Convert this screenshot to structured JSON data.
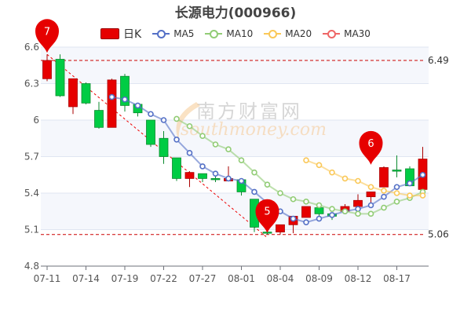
{
  "chart_data": {
    "type": "candlestick",
    "title": "长源电力(000966)",
    "legend": [
      "日K",
      "MA5",
      "MA10",
      "MA20",
      "MA30"
    ],
    "legend_placement": "top",
    "colors": {
      "up": "#e60000",
      "down": "#00cc44",
      "MA5": "#5470c6",
      "MA10": "#91cc75",
      "MA20": "#fac858",
      "MA30": "#ee6666"
    },
    "ylim": [
      4.8,
      6.6
    ],
    "yticks": [
      "4.8",
      "5.1",
      "5.4",
      "5.7",
      "6",
      "6.3",
      "6.6"
    ],
    "grid": true,
    "dates": [
      "07-11",
      "07-12",
      "07-13",
      "07-14",
      "07-15",
      "07-18",
      "07-19",
      "07-20",
      "07-21",
      "07-22",
      "07-25",
      "07-26",
      "07-27",
      "07-28",
      "07-29",
      "08-01",
      "08-02",
      "08-03",
      "08-04",
      "08-05",
      "08-08",
      "08-09",
      "08-10",
      "08-11",
      "08-12",
      "08-15",
      "08-16",
      "08-17",
      "08-18",
      "08-19"
    ],
    "xtick_labels": [
      "07-11",
      "07-14",
      "07-19",
      "07-22",
      "07-27",
      "08-01",
      "08-04",
      "08-09",
      "08-12",
      "08-17"
    ],
    "ohlc": [
      [
        6.34,
        6.49,
        6.54,
        6.32
      ],
      [
        6.5,
        6.2,
        6.54,
        6.19
      ],
      [
        6.11,
        6.34,
        6.34,
        6.05
      ],
      [
        6.3,
        6.14,
        6.31,
        6.13
      ],
      [
        6.08,
        5.94,
        6.15,
        5.93
      ],
      [
        5.94,
        6.33,
        6.34,
        5.94
      ],
      [
        6.36,
        6.12,
        6.38,
        6.07
      ],
      [
        6.13,
        6.06,
        6.13,
        6.03
      ],
      [
        6.0,
        5.8,
        6.0,
        5.78
      ],
      [
        5.85,
        5.7,
        5.91,
        5.64
      ],
      [
        5.69,
        5.52,
        5.69,
        5.5
      ],
      [
        5.52,
        5.57,
        5.58,
        5.45
      ],
      [
        5.56,
        5.52,
        5.56,
        5.49
      ],
      [
        5.52,
        5.51,
        5.54,
        5.49
      ],
      [
        5.5,
        5.52,
        5.62,
        5.5
      ],
      [
        5.51,
        5.41,
        5.51,
        5.38
      ],
      [
        5.35,
        5.12,
        5.35,
        5.08
      ],
      [
        5.08,
        5.07,
        5.09,
        5.06
      ],
      [
        5.08,
        5.14,
        5.14,
        5.06
      ],
      [
        5.14,
        5.21,
        5.21,
        5.07
      ],
      [
        5.2,
        5.29,
        5.29,
        5.2
      ],
      [
        5.28,
        5.23,
        5.28,
        5.21
      ],
      [
        5.23,
        5.21,
        5.23,
        5.18
      ],
      [
        5.25,
        5.29,
        5.31,
        5.25
      ],
      [
        5.29,
        5.34,
        5.39,
        5.29
      ],
      [
        5.37,
        5.41,
        5.41,
        5.31
      ],
      [
        5.45,
        5.61,
        5.62,
        5.45
      ],
      [
        5.59,
        5.58,
        5.71,
        5.53
      ],
      [
        5.6,
        5.46,
        5.62,
        5.46
      ],
      [
        5.43,
        5.68,
        5.78,
        5.43
      ]
    ],
    "ma": {
      "MA5": [
        null,
        null,
        null,
        null,
        null,
        6.19,
        6.17,
        6.12,
        6.05,
        6.0,
        5.84,
        5.73,
        5.62,
        5.56,
        5.52,
        5.5,
        5.41,
        5.32,
        5.25,
        5.19,
        5.16,
        5.19,
        5.22,
        5.25,
        5.27,
        5.3,
        5.37,
        5.45,
        5.48,
        5.55
      ],
      "MA10": [
        null,
        null,
        null,
        null,
        null,
        null,
        null,
        null,
        null,
        null,
        6.01,
        5.95,
        5.87,
        5.8,
        5.76,
        5.67,
        5.57,
        5.47,
        5.4,
        5.35,
        5.33,
        5.3,
        5.27,
        5.25,
        5.23,
        5.23,
        5.28,
        5.33,
        5.36,
        5.41
      ],
      "MA20": [
        null,
        null,
        null,
        null,
        null,
        null,
        null,
        null,
        null,
        null,
        null,
        null,
        null,
        null,
        null,
        null,
        null,
        null,
        null,
        null,
        5.67,
        5.63,
        5.57,
        5.52,
        5.5,
        5.45,
        5.42,
        5.4,
        5.38,
        5.38
      ],
      "MA30": []
    },
    "markers": [
      {
        "label": "7",
        "date": "07-11",
        "value": 6.54
      },
      {
        "label": "5",
        "date": "08-03",
        "value": 5.06
      },
      {
        "label": "6",
        "date": "08-15",
        "value": 5.62
      }
    ],
    "markLines": [
      {
        "label": "6.49",
        "value": 6.49
      },
      {
        "label": "5.06",
        "value": 5.06
      }
    ]
  },
  "watermark": {
    "cn": "南方财富网",
    "en": "southmoney.com"
  }
}
